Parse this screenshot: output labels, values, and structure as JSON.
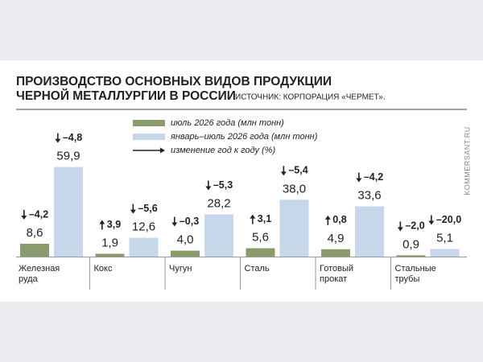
{
  "chart_data": {
    "type": "bar",
    "title": [
      "ПРОИЗВОДСТВО ОСНОВНЫХ ВИДОВ ПРОДУКЦИИ",
      "ЧЕРНОЙ МЕТАЛЛУРГИИ В РОССИИ"
    ],
    "source": "ИСТОЧНИК: КОРПОРАЦИЯ «ЧЕРМЕТ».",
    "watermark": "KOMMERSANT.RU",
    "change_legend": "изменение год к году (%)",
    "categories": [
      [
        "Железная",
        "руда"
      ],
      [
        "Кокс"
      ],
      [
        "Чугун"
      ],
      [
        "Сталь"
      ],
      [
        "Готовый",
        "прокат"
      ],
      [
        "Стальные",
        "трубы"
      ]
    ],
    "series": [
      {
        "name": "июль 2026 года (млн тонн)",
        "color": "#8c9b6c",
        "values": [
          8.6,
          1.9,
          4.0,
          5.6,
          4.9,
          0.9
        ],
        "value_labels": [
          "8,6",
          "1,9",
          "4,0",
          "5,6",
          "4,9",
          "0,9"
        ],
        "changes": [
          -4.2,
          3.9,
          -0.3,
          3.1,
          0.8,
          -2.0
        ],
        "change_labels": [
          "–4,2",
          "3,9",
          "–0,3",
          "3,1",
          "0,8",
          "–2,0"
        ]
      },
      {
        "name": "январь–июль 2026 года (млн тонн)",
        "color": "#c6d7e9",
        "values": [
          59.9,
          12.6,
          28.2,
          38.0,
          33.6,
          5.1
        ],
        "value_labels": [
          "59,9",
          "12,6",
          "28,2",
          "38,0",
          "33,6",
          "5,1"
        ],
        "changes": [
          -4.8,
          -5.6,
          -5.3,
          -5.4,
          -4.2,
          -20.0
        ],
        "change_labels": [
          "–4,8",
          "–5,6",
          "–5,3",
          "–5,4",
          "–4,2",
          "–20,0"
        ]
      }
    ]
  }
}
